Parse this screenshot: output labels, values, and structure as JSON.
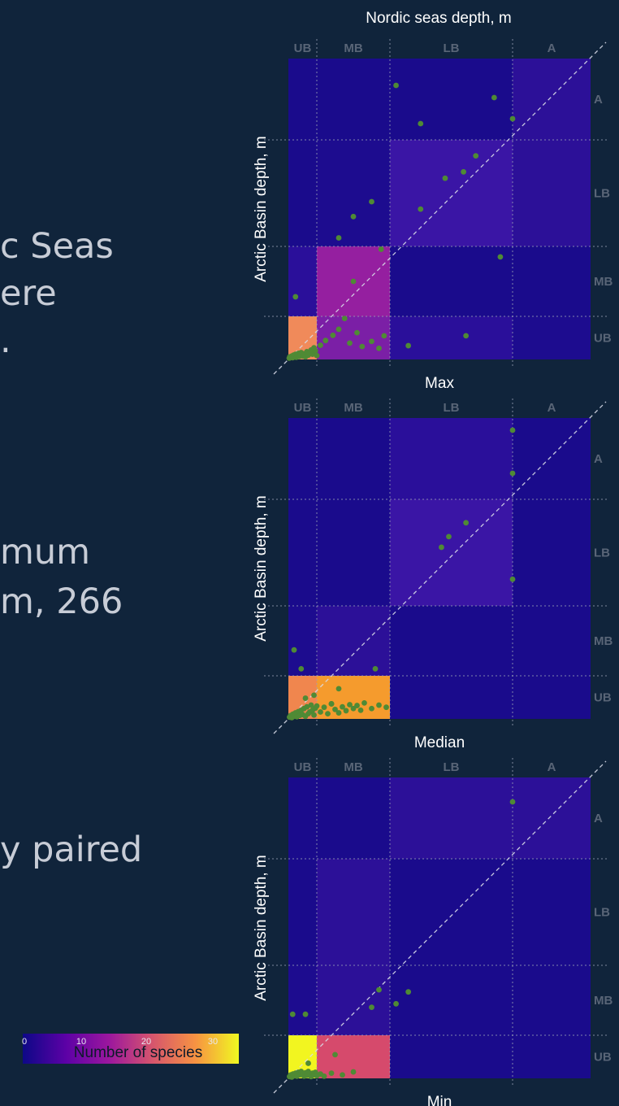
{
  "slide_text": [
    "c Seas",
    "ere",
    ".",
    "mum",
    "m, 266",
    "y paired"
  ],
  "figure_title": "Nordic seas depth, m",
  "chart_data": [
    {
      "type": "heatmap",
      "title": "Max",
      "xlabel": "Nordic seas depth, m",
      "ylabel": "Arctic Basin depth, m",
      "categories": [
        "UB",
        "MB",
        "LB",
        "A"
      ],
      "cells": [
        [
          "#f08a5a",
          "#7b1fa6",
          "#2a0f9a",
          "#1d0c8f"
        ],
        [
          "#2a0f9a",
          "#951fa0",
          "#1a0b8c",
          "#1a0b8c"
        ],
        [
          "#1a0b8c",
          "#1d0c8f",
          "#3a15a5",
          "#2c1098"
        ],
        [
          "#1a0b8c",
          "#1a0b8c",
          "#1a0b8c",
          "#2c1098"
        ]
      ],
      "points": [
        [
          0.03,
          0.03
        ],
        [
          0.05,
          0.06
        ],
        [
          0.08,
          0.05
        ],
        [
          0.12,
          0.08
        ],
        [
          0.15,
          0.04
        ],
        [
          0.18,
          0.1
        ],
        [
          0.22,
          0.06
        ],
        [
          0.25,
          0.12
        ],
        [
          0.28,
          0.05
        ],
        [
          0.32,
          0.09
        ],
        [
          0.35,
          0.14
        ],
        [
          0.38,
          0.07
        ],
        [
          0.42,
          0.11
        ],
        [
          0.45,
          0.16
        ],
        [
          0.5,
          0.08
        ],
        [
          0.55,
          0.13
        ],
        [
          0.6,
          0.06
        ],
        [
          0.65,
          0.18
        ],
        [
          0.7,
          0.1
        ],
        [
          0.75,
          0.15
        ],
        [
          0.8,
          0.22
        ],
        [
          0.85,
          0.12
        ],
        [
          0.9,
          0.27
        ],
        [
          0.95,
          0.2
        ],
        [
          1.0,
          0.09
        ],
        [
          1.05,
          0.33
        ],
        [
          1.12,
          0.44
        ],
        [
          1.22,
          0.56
        ],
        [
          1.3,
          0.7
        ],
        [
          1.38,
          0.95
        ],
        [
          1.45,
          0.38
        ],
        [
          1.55,
          0.62
        ],
        [
          1.62,
          0.3
        ],
        [
          1.75,
          0.42
        ],
        [
          1.85,
          0.26
        ],
        [
          1.92,
          0.55
        ],
        [
          2.15,
          0.32
        ],
        [
          2.62,
          0.55
        ],
        [
          0.25,
          1.28
        ],
        [
          1.5,
          1.5
        ],
        [
          1.88,
          1.96
        ],
        [
          1.3,
          2.08
        ],
        [
          1.5,
          2.28
        ],
        [
          1.75,
          2.42
        ],
        [
          2.25,
          2.35
        ],
        [
          2.45,
          2.64
        ],
        [
          2.6,
          2.7
        ],
        [
          2.7,
          2.85
        ],
        [
          2.9,
          1.85
        ],
        [
          2.25,
          3.2
        ],
        [
          2.05,
          3.67
        ],
        [
          3.0,
          3.26
        ],
        [
          2.85,
          3.52
        ]
      ]
    },
    {
      "type": "heatmap",
      "title": "Median",
      "xlabel": "",
      "ylabel": "Arctic Basin depth, m",
      "categories": [
        "UB",
        "MB",
        "LB",
        "A"
      ],
      "cells": [
        [
          "#f0864e",
          "#f59b2d",
          "#1a0b8c",
          "#1a0b8c"
        ],
        [
          "#1d0c8f",
          "#2c1098",
          "#1a0b8c",
          "#1a0b8c"
        ],
        [
          "#1a0b8c",
          "#1a0b8c",
          "#3a15a5",
          "#1a0b8c"
        ],
        [
          "#1a0b8c",
          "#1a0b8c",
          "#2a0f9a",
          "#1a0b8c"
        ]
      ],
      "points": [
        [
          0.04,
          0.04
        ],
        [
          0.08,
          0.08
        ],
        [
          0.12,
          0.03
        ],
        [
          0.16,
          0.11
        ],
        [
          0.2,
          0.06
        ],
        [
          0.25,
          0.14
        ],
        [
          0.3,
          0.05
        ],
        [
          0.35,
          0.17
        ],
        [
          0.4,
          0.08
        ],
        [
          0.45,
          0.2
        ],
        [
          0.5,
          0.1
        ],
        [
          0.55,
          0.24
        ],
        [
          0.6,
          0.06
        ],
        [
          0.65,
          0.28
        ],
        [
          0.7,
          0.12
        ],
        [
          0.75,
          0.16
        ],
        [
          0.8,
          0.32
        ],
        [
          0.85,
          0.2
        ],
        [
          0.9,
          0.09
        ],
        [
          0.95,
          0.25
        ],
        [
          1.0,
          0.3
        ],
        [
          1.05,
          0.16
        ],
        [
          1.1,
          0.27
        ],
        [
          1.15,
          0.12
        ],
        [
          1.2,
          0.35
        ],
        [
          1.25,
          0.22
        ],
        [
          1.3,
          0.14
        ],
        [
          1.35,
          0.28
        ],
        [
          1.4,
          0.19
        ],
        [
          1.45,
          0.33
        ],
        [
          1.5,
          0.24
        ],
        [
          1.55,
          0.31
        ],
        [
          1.6,
          0.2
        ],
        [
          1.65,
          0.37
        ],
        [
          1.75,
          0.24
        ],
        [
          1.85,
          0.32
        ],
        [
          1.95,
          0.27
        ],
        [
          0.2,
          1.37
        ],
        [
          0.45,
          1.1
        ],
        [
          1.3,
          0.7
        ],
        [
          0.9,
          0.55
        ],
        [
          0.6,
          0.48
        ],
        [
          1.8,
          1.1
        ],
        [
          1.2,
          0.35
        ],
        [
          2.42,
          2.55
        ],
        [
          2.48,
          2.65
        ],
        [
          2.62,
          2.78
        ],
        [
          3.0,
          2.25
        ],
        [
          3.0,
          3.32
        ],
        [
          3.0,
          3.85
        ]
      ]
    },
    {
      "type": "heatmap",
      "title": "Min",
      "xlabel": "",
      "ylabel": "Arctic Basin depth, m",
      "categories": [
        "UB",
        "MB",
        "LB",
        "A"
      ],
      "cells": [
        [
          "#f2f520",
          "#d64a6c",
          "#1a0b8c",
          "#1a0b8c"
        ],
        [
          "#1d0c8f",
          "#2c1098",
          "#1a0b8c",
          "#1a0b8c"
        ],
        [
          "#1a0b8c",
          "#2c1098",
          "#1a0b8c",
          "#1a0b8c"
        ],
        [
          "#1a0b8c",
          "#1a0b8c",
          "#2c1098",
          "#2c1098"
        ]
      ],
      "points": [
        [
          0.04,
          0.04
        ],
        [
          0.08,
          0.08
        ],
        [
          0.12,
          0.03
        ],
        [
          0.16,
          0.1
        ],
        [
          0.2,
          0.06
        ],
        [
          0.25,
          0.12
        ],
        [
          0.3,
          0.05
        ],
        [
          0.35,
          0.14
        ],
        [
          0.4,
          0.08
        ],
        [
          0.45,
          0.16
        ],
        [
          0.5,
          0.1
        ],
        [
          0.55,
          0.05
        ],
        [
          0.6,
          0.13
        ],
        [
          0.65,
          0.07
        ],
        [
          0.7,
          0.16
        ],
        [
          0.75,
          0.1
        ],
        [
          0.8,
          0.04
        ],
        [
          0.85,
          0.12
        ],
        [
          0.9,
          0.08
        ],
        [
          0.95,
          0.14
        ],
        [
          1.0,
          0.06
        ],
        [
          1.05,
          0.1
        ],
        [
          1.1,
          0.05
        ],
        [
          1.2,
          0.12
        ],
        [
          1.35,
          0.08
        ],
        [
          1.5,
          0.15
        ],
        [
          0.15,
          1.3
        ],
        [
          0.6,
          1.3
        ],
        [
          1.25,
          0.55
        ],
        [
          1.75,
          1.4
        ],
        [
          1.85,
          1.65
        ],
        [
          2.05,
          1.45
        ],
        [
          2.15,
          1.62
        ],
        [
          0.7,
          0.35
        ],
        [
          3.0,
          3.7
        ]
      ]
    }
  ],
  "colorbar": {
    "label": "Number of species",
    "ticks": [
      "0",
      "10",
      "20",
      "30"
    ],
    "min": 0,
    "max": 35
  },
  "colors": {
    "background": "#10243b",
    "point": "#4f8a35",
    "zone_label": "#596577",
    "gridline": "#9aa3b5"
  }
}
